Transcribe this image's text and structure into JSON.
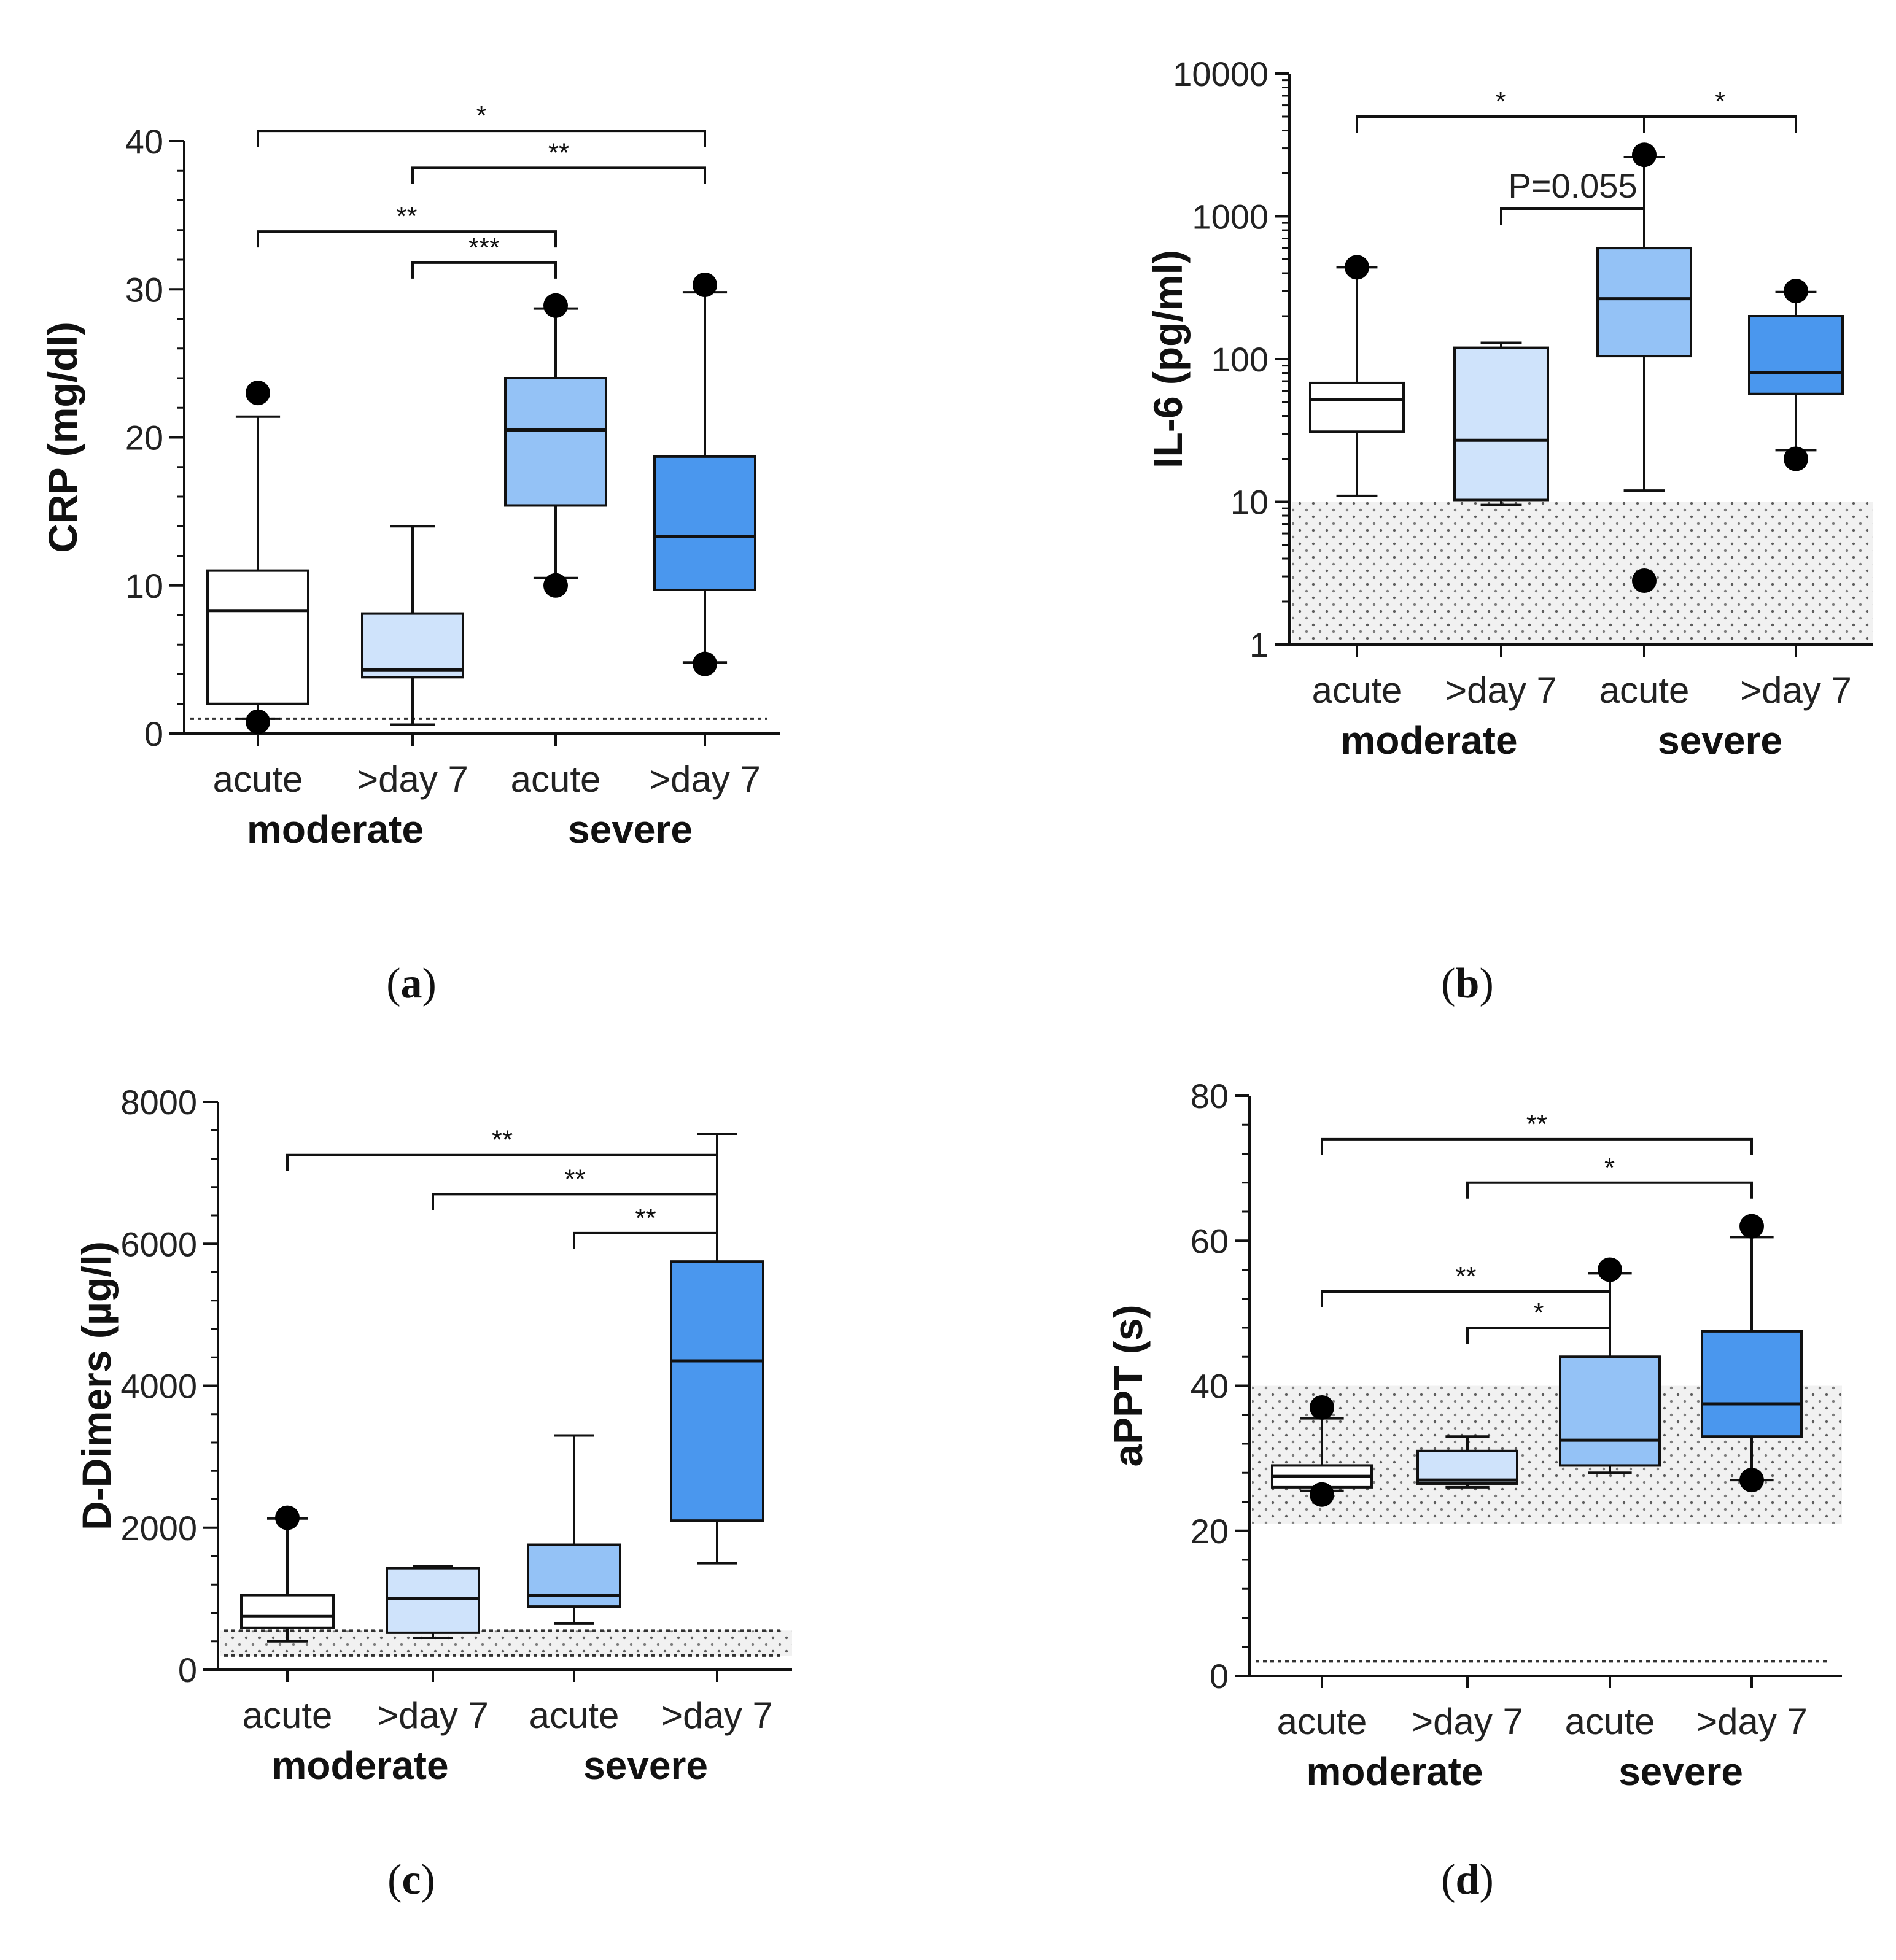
{
  "figure": {
    "groups": [
      "moderate",
      "severe"
    ],
    "categories": [
      "acute",
      ">day 7",
      "acute",
      ">day 7"
    ],
    "colors": [
      "#ffffff",
      "#cfe3fb",
      "#94c2f6",
      "#4a97ee"
    ],
    "stroke": "#111111"
  },
  "chart_data": [
    {
      "id": "a",
      "type": "box",
      "panel_label": "a",
      "ylabel": "CRP (mg/dl)",
      "yscale": "linear",
      "ylim": [
        0,
        40
      ],
      "yticks": [
        0,
        10,
        20,
        30,
        40
      ],
      "minor_step": 2,
      "ref_lines": [
        1
      ],
      "ref_band": null,
      "boxes": [
        {
          "whisker_low": 1.0,
          "q1": 2.0,
          "median": 8.3,
          "q3": 11.0,
          "whisker_high": 21.4,
          "outliers": [
            23.0,
            0.8
          ]
        },
        {
          "whisker_low": 0.6,
          "q1": 3.8,
          "median": 4.3,
          "q3": 8.1,
          "whisker_high": 14.0,
          "outliers": []
        },
        {
          "whisker_low": 10.5,
          "q1": 15.4,
          "median": 20.5,
          "q3": 24.0,
          "whisker_high": 28.7,
          "outliers": [
            28.9,
            10.0
          ]
        },
        {
          "whisker_low": 4.8,
          "q1": 9.7,
          "median": 13.3,
          "q3": 18.7,
          "whisker_high": 29.8,
          "outliers": [
            30.3,
            4.7
          ]
        }
      ],
      "brackets": [
        {
          "from": 0,
          "to": 3,
          "level": 40.7,
          "label": "*"
        },
        {
          "from": 1,
          "to": 3,
          "level": 38.2,
          "label": "**"
        },
        {
          "from": 0,
          "to": 2,
          "level": 33.9,
          "label": "**"
        },
        {
          "from": 1,
          "to": 2,
          "level": 31.8,
          "label": "***"
        }
      ]
    },
    {
      "id": "b",
      "type": "box",
      "panel_label": "b",
      "ylabel": "IL-6 (pg/ml)",
      "yscale": "log",
      "ylim": [
        1,
        10000
      ],
      "yticks": [
        1,
        10,
        100,
        1000,
        10000
      ],
      "ref_lines": [],
      "ref_band": [
        1,
        10
      ],
      "boxes": [
        {
          "whisker_low": 11,
          "q1": 31,
          "median": 52,
          "q3": 68,
          "whisker_high": 440,
          "outliers": [
            440
          ]
        },
        {
          "whisker_low": 9.5,
          "q1": 10.3,
          "median": 27,
          "q3": 120,
          "whisker_high": 130,
          "outliers": []
        },
        {
          "whisker_low": 12,
          "q1": 105,
          "median": 265,
          "q3": 600,
          "whisker_high": 2600,
          "outliers": [
            2700,
            2.8
          ]
        },
        {
          "whisker_low": 23,
          "q1": 57,
          "median": 80,
          "q3": 200,
          "whisker_high": 295,
          "outliers": [
            300,
            20
          ]
        }
      ],
      "brackets": [
        {
          "from": 0,
          "to": 2,
          "level": 1700,
          "label": "*",
          "log": true,
          "fixed_y": 190
        },
        {
          "from": 2,
          "to": 3,
          "level": 1700,
          "label": "*",
          "log": true,
          "fixed_y": 190
        },
        {
          "from": 1,
          "to": 2,
          "level": 700,
          "label": "P=0.055",
          "log": true,
          "fixed_y": 340
        }
      ]
    },
    {
      "id": "c",
      "type": "box",
      "panel_label": "c",
      "ylabel": "D-Dimers (µg/l)",
      "yscale": "linear",
      "ylim": [
        0,
        8000
      ],
      "yticks": [
        0,
        2000,
        4000,
        6000,
        8000
      ],
      "minor_step": 400,
      "ref_lines": [
        550,
        200
      ],
      "ref_band": [
        200,
        550
      ],
      "boxes": [
        {
          "whisker_low": 400,
          "q1": 590,
          "median": 750,
          "q3": 1050,
          "whisker_high": 2130,
          "outliers": [
            2140
          ]
        },
        {
          "whisker_low": 450,
          "q1": 520,
          "median": 1000,
          "q3": 1430,
          "whisker_high": 1460,
          "outliers": []
        },
        {
          "whisker_low": 650,
          "q1": 890,
          "median": 1050,
          "q3": 1760,
          "whisker_high": 3300,
          "outliers": []
        },
        {
          "whisker_low": 1500,
          "q1": 2100,
          "median": 4350,
          "q3": 5750,
          "whisker_high": 7550,
          "outliers": []
        }
      ],
      "brackets": [
        {
          "from": 0,
          "to": 3,
          "level": 7250,
          "label": "**"
        },
        {
          "from": 1,
          "to": 3,
          "level": 6700,
          "label": "**"
        },
        {
          "from": 2,
          "to": 3,
          "level": 6150,
          "label": "**"
        }
      ]
    },
    {
      "id": "d",
      "type": "box",
      "panel_label": "d",
      "ylabel": "aPPT (s)",
      "yscale": "linear",
      "ylim": [
        0,
        80
      ],
      "yticks": [
        0,
        20,
        40,
        60,
        80
      ],
      "minor_step": 4,
      "ref_lines": [
        2
      ],
      "ref_band": [
        21,
        40
      ],
      "boxes": [
        {
          "whisker_low": 25.5,
          "q1": 26.0,
          "median": 27.5,
          "q3": 29.0,
          "whisker_high": 35.5,
          "outliers": [
            37,
            25
          ]
        },
        {
          "whisker_low": 26.0,
          "q1": 26.5,
          "median": 27.0,
          "q3": 31.0,
          "whisker_high": 33.0,
          "outliers": []
        },
        {
          "whisker_low": 28.0,
          "q1": 29.0,
          "median": 32.5,
          "q3": 44.0,
          "whisker_high": 55.5,
          "outliers": [
            56
          ]
        },
        {
          "whisker_low": 27.0,
          "q1": 33.0,
          "median": 37.5,
          "q3": 47.5,
          "whisker_high": 60.5,
          "outliers": [
            62,
            27
          ]
        }
      ],
      "brackets": [
        {
          "from": 0,
          "to": 3,
          "level": 74,
          "label": "**"
        },
        {
          "from": 1,
          "to": 3,
          "level": 68,
          "label": "*"
        },
        {
          "from": 0,
          "to": 2,
          "level": 53,
          "label": "**"
        },
        {
          "from": 1,
          "to": 2,
          "level": 48,
          "label": "*"
        }
      ]
    }
  ]
}
